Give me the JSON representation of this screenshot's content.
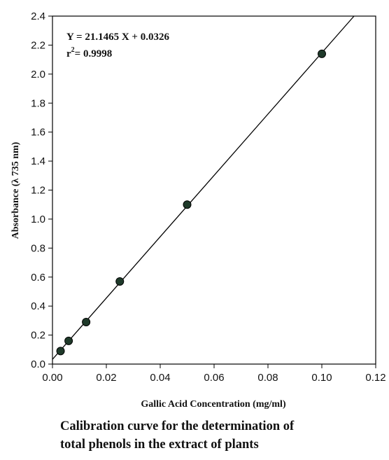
{
  "chart_data": {
    "type": "scatter",
    "xlabel": "Gallic Acid Concentration (mg/ml)",
    "ylabel": "Absorbance (λ 735 nm)",
    "xlim": [
      0.0,
      0.12
    ],
    "ylim": [
      0.0,
      2.4
    ],
    "xticks": [
      "0.00",
      "0.02",
      "0.04",
      "0.06",
      "0.08",
      "0.10",
      "0.12"
    ],
    "yticks": [
      "0.0",
      "0.2",
      "0.4",
      "0.6",
      "0.8",
      "1.0",
      "1.2",
      "1.4",
      "1.6",
      "1.8",
      "2.0",
      "2.2",
      "2.4"
    ],
    "grid": false,
    "points": [
      {
        "x": 0.003,
        "y": 0.09
      },
      {
        "x": 0.006,
        "y": 0.16
      },
      {
        "x": 0.0125,
        "y": 0.29
      },
      {
        "x": 0.025,
        "y": 0.57
      },
      {
        "x": 0.05,
        "y": 1.1
      },
      {
        "x": 0.1,
        "y": 2.14
      }
    ],
    "fit": {
      "slope": 21.1465,
      "intercept": 0.0326
    },
    "equation": "Y = 21.1465 X + 0.0326",
    "r2_prefix": "r",
    "r2_sup": "2",
    "r2_value": "= 0.9998",
    "colors": {
      "marker": "#1f3a2a",
      "line": "#000000"
    }
  },
  "caption": {
    "line1": "Calibration curve for the determination of",
    "line2": "total phenols in the extract of plants"
  }
}
